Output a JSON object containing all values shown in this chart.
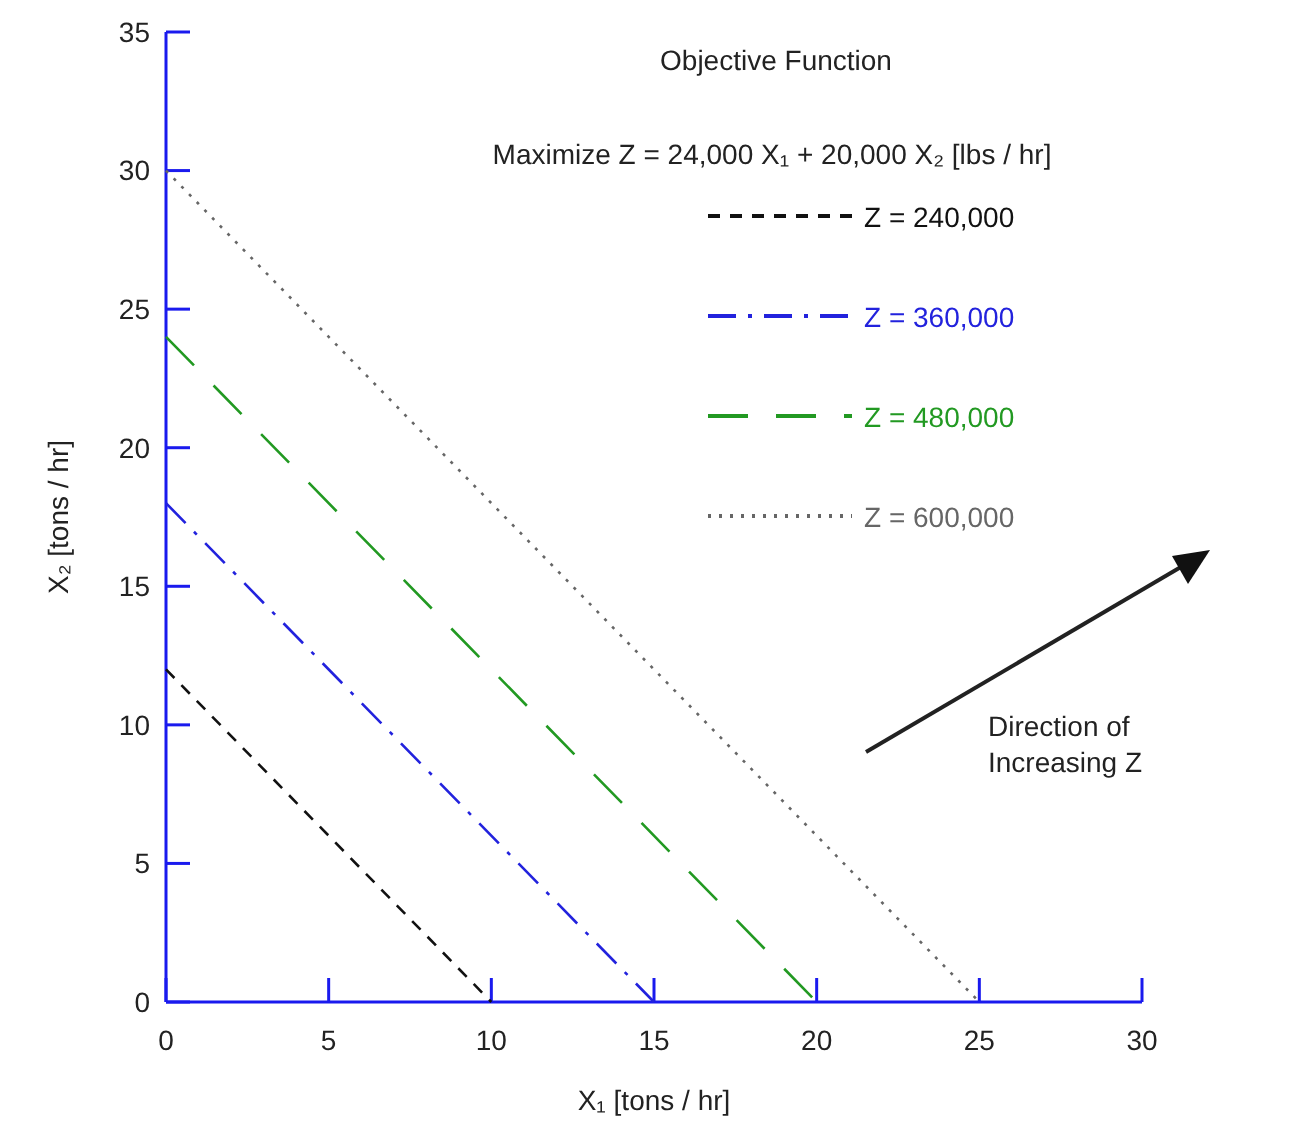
{
  "chart_data": {
    "type": "line",
    "xlabel": "X₁ [tons / hr]",
    "ylabel": "X₂ [tons / hr]",
    "xlim": [
      0,
      30
    ],
    "ylim": [
      0,
      35
    ],
    "xticks": [
      0,
      5,
      10,
      15,
      20,
      25,
      30
    ],
    "yticks": [
      0,
      5,
      10,
      15,
      20,
      25,
      30,
      35
    ],
    "series": [
      {
        "name": "Z = 240,000",
        "color": "#111111",
        "line_style": "dashed",
        "x": [
          0,
          10
        ],
        "values": [
          12,
          0
        ]
      },
      {
        "name": "Z = 360,000",
        "color": "#2222dd",
        "line_style": "dashed",
        "x": [
          0,
          15
        ],
        "values": [
          18,
          0
        ]
      },
      {
        "name": "Z = 480,000",
        "color": "#229922",
        "line_style": "dashed",
        "x": [
          0,
          20
        ],
        "values": [
          24,
          0
        ]
      },
      {
        "name": "Z = 600,000",
        "color": "#666666",
        "line_style": "dotted",
        "x": [
          0,
          25
        ],
        "values": [
          30,
          0
        ]
      }
    ],
    "annotations": [
      "Objective Function",
      "Maximize Z = 24,000 X₁ + 20,000 X₂ [lbs / hr]",
      "Direction of Increasing Z"
    ],
    "legend": "top right",
    "grid": false,
    "marker": "none"
  }
}
